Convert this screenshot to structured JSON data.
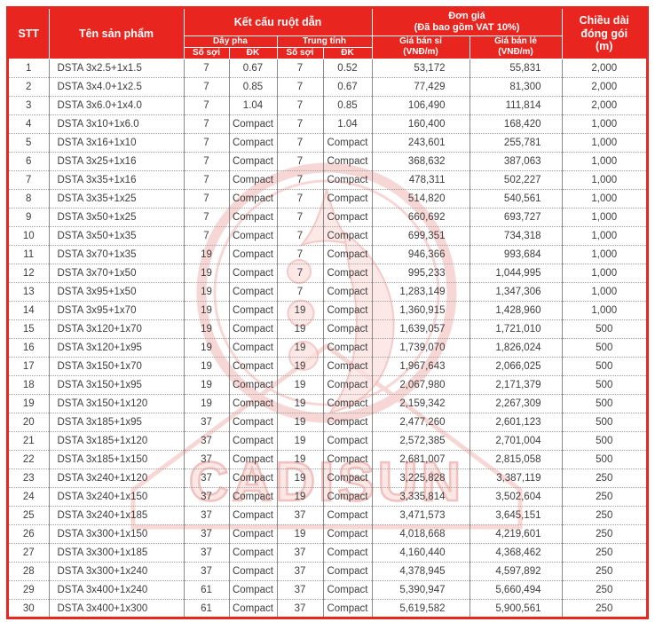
{
  "colors": {
    "accent_red": "#e8251f",
    "body_text": "#3d3d3d",
    "grid_vertical": "#8a8a8a",
    "grid_dotted": "#9e9e9e",
    "watermark_pink": "#f2b7b3"
  },
  "watermark": {
    "brand": "CADISUN",
    "logo": "cadisun-circle-logo"
  },
  "table": {
    "headers": {
      "stt": "STT",
      "product": "Tên sản phẩm",
      "conductor_group": "Kết cấu ruột dẫn",
      "phase": "Dây pha",
      "neutral": "Trung tính",
      "strand_count": "Số sợi",
      "diameter": "ĐK",
      "price_group_line1": "Đơn giá",
      "price_group_line2": "(Đã bao gồm VAT 10%)",
      "wholesale_line1": "Giá bán sỉ",
      "wholesale_line2": "(VNĐ/m)",
      "retail_line1": "Giá bán lẻ",
      "retail_line2": "(VNĐ/m)",
      "pack_length_line1": "Chiều dài",
      "pack_length_line2": "đóng gói",
      "pack_length_line3": "(m)"
    },
    "rows": [
      {
        "stt": "1",
        "name": "DSTA 3x2.5+1x1.5",
        "phase_strands": "7",
        "phase_dk": "0.67",
        "neutral_strands": "7",
        "neutral_dk": "0.52",
        "wholesale": "53,172",
        "retail": "55,831",
        "length": "2,000"
      },
      {
        "stt": "2",
        "name": "DSTA 3x4.0+1x2.5",
        "phase_strands": "7",
        "phase_dk": "0.85",
        "neutral_strands": "7",
        "neutral_dk": "0.67",
        "wholesale": "77,429",
        "retail": "81,300",
        "length": "2,000"
      },
      {
        "stt": "3",
        "name": "DSTA 3x6.0+1x4.0",
        "phase_strands": "7",
        "phase_dk": "1.04",
        "neutral_strands": "7",
        "neutral_dk": "0.85",
        "wholesale": "106,490",
        "retail": "111,814",
        "length": "2,000"
      },
      {
        "stt": "4",
        "name": "DSTA 3x10+1x6.0",
        "phase_strands": "7",
        "phase_dk": "Compact",
        "neutral_strands": "7",
        "neutral_dk": "1.04",
        "wholesale": "160,400",
        "retail": "168,420",
        "length": "1,000"
      },
      {
        "stt": "5",
        "name": "DSTA 3x16+1x10",
        "phase_strands": "7",
        "phase_dk": "Compact",
        "neutral_strands": "7",
        "neutral_dk": "Compact",
        "wholesale": "243,601",
        "retail": "255,781",
        "length": "1,000"
      },
      {
        "stt": "6",
        "name": "DSTA 3x25+1x16",
        "phase_strands": "7",
        "phase_dk": "Compact",
        "neutral_strands": "7",
        "neutral_dk": "Compact",
        "wholesale": "368,632",
        "retail": "387,063",
        "length": "1,000"
      },
      {
        "stt": "7",
        "name": "DSTA 3x35+1x16",
        "phase_strands": "7",
        "phase_dk": "Compact",
        "neutral_strands": "7",
        "neutral_dk": "Compact",
        "wholesale": "478,311",
        "retail": "502,227",
        "length": "1,000"
      },
      {
        "stt": "8",
        "name": "DSTA 3x35+1x25",
        "phase_strands": "7",
        "phase_dk": "Compact",
        "neutral_strands": "7",
        "neutral_dk": "Compact",
        "wholesale": "514,820",
        "retail": "540,561",
        "length": "1,000"
      },
      {
        "stt": "9",
        "name": "DSTA 3x50+1x25",
        "phase_strands": "7",
        "phase_dk": "Compact",
        "neutral_strands": "7",
        "neutral_dk": "Compact",
        "wholesale": "660,692",
        "retail": "693,727",
        "length": "1,000"
      },
      {
        "stt": "10",
        "name": "DSTA 3x50+1x35",
        "phase_strands": "7",
        "phase_dk": "Compact",
        "neutral_strands": "7",
        "neutral_dk": "Compact",
        "wholesale": "699,351",
        "retail": "734,318",
        "length": "1,000"
      },
      {
        "stt": "11",
        "name": "DSTA 3x70+1x35",
        "phase_strands": "19",
        "phase_dk": "Compact",
        "neutral_strands": "7",
        "neutral_dk": "Compact",
        "wholesale": "946,366",
        "retail": "993,684",
        "length": "1,000"
      },
      {
        "stt": "12",
        "name": "DSTA 3x70+1x50",
        "phase_strands": "19",
        "phase_dk": "Compact",
        "neutral_strands": "7",
        "neutral_dk": "Compact",
        "wholesale": "995,233",
        "retail": "1,044,995",
        "length": "1,000"
      },
      {
        "stt": "13",
        "name": "DSTA 3x95+1x50",
        "phase_strands": "19",
        "phase_dk": "Compact",
        "neutral_strands": "7",
        "neutral_dk": "Compact",
        "wholesale": "1,283,149",
        "retail": "1,347,306",
        "length": "1,000"
      },
      {
        "stt": "14",
        "name": "DSTA 3x95+1x70",
        "phase_strands": "19",
        "phase_dk": "Compact",
        "neutral_strands": "19",
        "neutral_dk": "Compact",
        "wholesale": "1,360,915",
        "retail": "1,428,960",
        "length": "1,000"
      },
      {
        "stt": "15",
        "name": "DSTA 3x120+1x70",
        "phase_strands": "19",
        "phase_dk": "Compact",
        "neutral_strands": "19",
        "neutral_dk": "Compact",
        "wholesale": "1,639,057",
        "retail": "1,721,010",
        "length": "500"
      },
      {
        "stt": "16",
        "name": "DSTA 3x120+1x95",
        "phase_strands": "19",
        "phase_dk": "Compact",
        "neutral_strands": "19",
        "neutral_dk": "Compact",
        "wholesale": "1,739,070",
        "retail": "1,826,024",
        "length": "500"
      },
      {
        "stt": "17",
        "name": "DSTA 3x150+1x70",
        "phase_strands": "19",
        "phase_dk": "Compact",
        "neutral_strands": "19",
        "neutral_dk": "Compact",
        "wholesale": "1,967,643",
        "retail": "2,066,025",
        "length": "500"
      },
      {
        "stt": "18",
        "name": "DSTA 3x150+1x95",
        "phase_strands": "19",
        "phase_dk": "Compact",
        "neutral_strands": "19",
        "neutral_dk": "Compact",
        "wholesale": "2,067,980",
        "retail": "2,171,379",
        "length": "500"
      },
      {
        "stt": "19",
        "name": "DSTA 3x150+1x120",
        "phase_strands": "19",
        "phase_dk": "Compact",
        "neutral_strands": "19",
        "neutral_dk": "Compact",
        "wholesale": "2,159,342",
        "retail": "2,267,309",
        "length": "500"
      },
      {
        "stt": "20",
        "name": "DSTA 3x185+1x95",
        "phase_strands": "37",
        "phase_dk": "Compact",
        "neutral_strands": "19",
        "neutral_dk": "Compact",
        "wholesale": "2,477,260",
        "retail": "2,601,123",
        "length": "500"
      },
      {
        "stt": "21",
        "name": "DSTA 3x185+1x120",
        "phase_strands": "37",
        "phase_dk": "Compact",
        "neutral_strands": "19",
        "neutral_dk": "Compact",
        "wholesale": "2,572,385",
        "retail": "2,701,004",
        "length": "500"
      },
      {
        "stt": "22",
        "name": "DSTA 3x185+1x150",
        "phase_strands": "37",
        "phase_dk": "Compact",
        "neutral_strands": "19",
        "neutral_dk": "Compact",
        "wholesale": "2,681,007",
        "retail": "2,815,058",
        "length": "500"
      },
      {
        "stt": "23",
        "name": "DSTA 3x240+1x120",
        "phase_strands": "37",
        "phase_dk": "Compact",
        "neutral_strands": "19",
        "neutral_dk": "Compact",
        "wholesale": "3,225,828",
        "retail": "3,387,119",
        "length": "250"
      },
      {
        "stt": "24",
        "name": "DSTA 3x240+1x150",
        "phase_strands": "37",
        "phase_dk": "Compact",
        "neutral_strands": "19",
        "neutral_dk": "Compact",
        "wholesale": "3,335,814",
        "retail": "3,502,604",
        "length": "250"
      },
      {
        "stt": "25",
        "name": "DSTA 3x240+1x185",
        "phase_strands": "37",
        "phase_dk": "Compact",
        "neutral_strands": "37",
        "neutral_dk": "Compact",
        "wholesale": "3,471,573",
        "retail": "3,645,151",
        "length": "250"
      },
      {
        "stt": "26",
        "name": "DSTA 3x300+1x150",
        "phase_strands": "37",
        "phase_dk": "Compact",
        "neutral_strands": "19",
        "neutral_dk": "Compact",
        "wholesale": "4,018,668",
        "retail": "4,219,601",
        "length": "250"
      },
      {
        "stt": "27",
        "name": "DSTA 3x300+1x185",
        "phase_strands": "37",
        "phase_dk": "Compact",
        "neutral_strands": "37",
        "neutral_dk": "Compact",
        "wholesale": "4,160,440",
        "retail": "4,368,462",
        "length": "250"
      },
      {
        "stt": "28",
        "name": "DSTA 3x300+1x240",
        "phase_strands": "37",
        "phase_dk": "Compact",
        "neutral_strands": "37",
        "neutral_dk": "Compact",
        "wholesale": "4,378,945",
        "retail": "4,597,892",
        "length": "250"
      },
      {
        "stt": "29",
        "name": "DSTA 3x400+1x240",
        "phase_strands": "61",
        "phase_dk": "Compact",
        "neutral_strands": "37",
        "neutral_dk": "Compact",
        "wholesale": "5,390,947",
        "retail": "5,660,494",
        "length": "250"
      },
      {
        "stt": "30",
        "name": "DSTA 3x400+1x300",
        "phase_strands": "61",
        "phase_dk": "Compact",
        "neutral_strands": "37",
        "neutral_dk": "Compact",
        "wholesale": "5,619,582",
        "retail": "5,900,561",
        "length": "250"
      }
    ]
  }
}
